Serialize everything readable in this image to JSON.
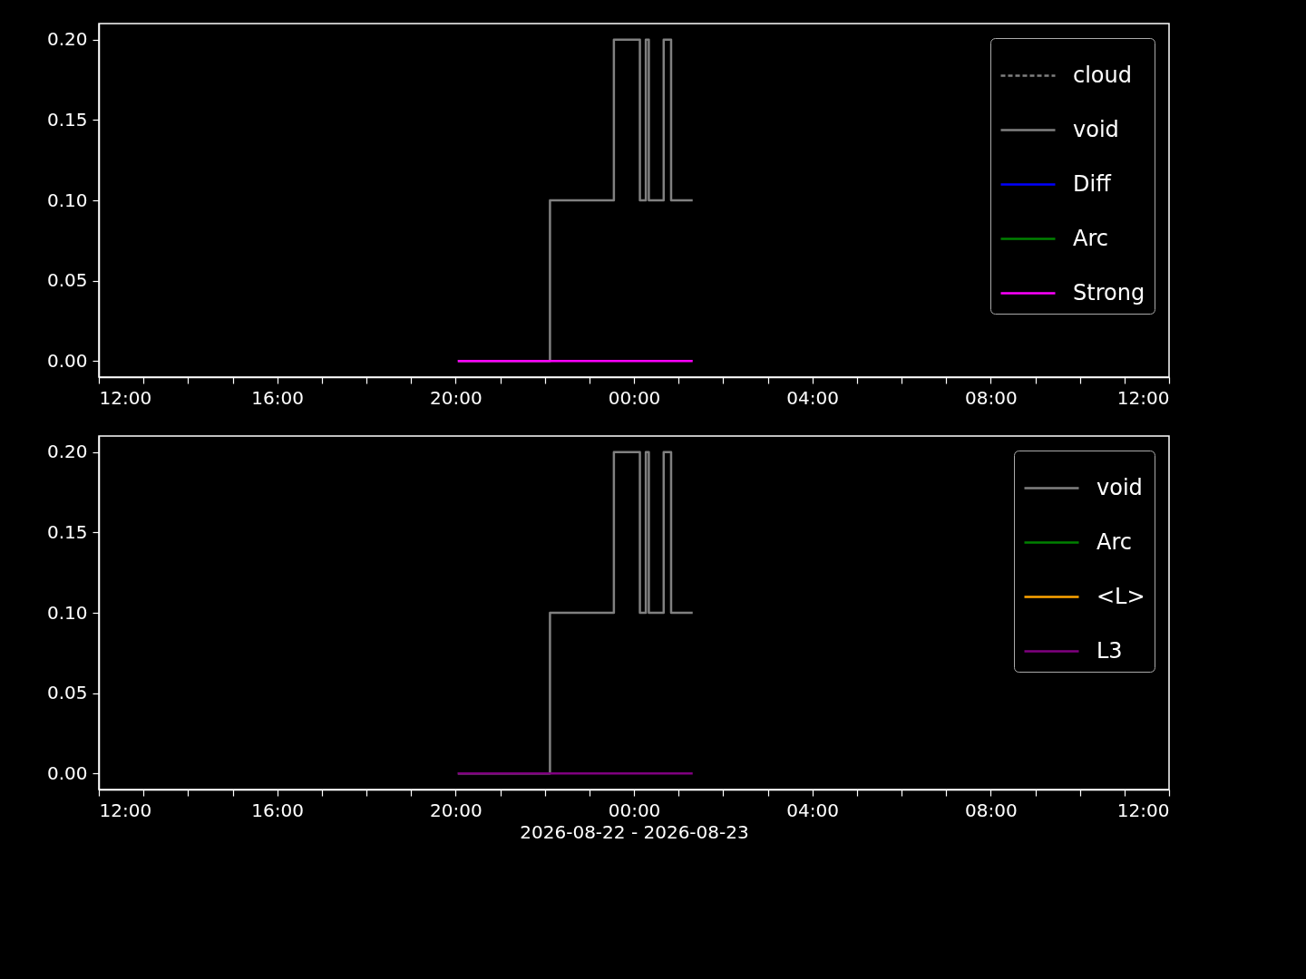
{
  "chart_data": [
    {
      "type": "line",
      "xlim": [
        "2026-08-22T12:00",
        "2026-08-23T12:00"
      ],
      "xticks": [
        {
          "value": "2026-08-22T12:00",
          "label": "12:00"
        },
        {
          "value": "2026-08-22T13:00",
          "label": null
        },
        {
          "value": "2026-08-22T14:00",
          "label": null
        },
        {
          "value": "2026-08-22T15:00",
          "label": null
        },
        {
          "value": "2026-08-22T16:00",
          "label": "16:00"
        },
        {
          "value": "2026-08-22T17:00",
          "label": null
        },
        {
          "value": "2026-08-22T18:00",
          "label": null
        },
        {
          "value": "2026-08-22T19:00",
          "label": null
        },
        {
          "value": "2026-08-22T20:00",
          "label": "20:00"
        },
        {
          "value": "2026-08-22T21:00",
          "label": null
        },
        {
          "value": "2026-08-22T22:00",
          "label": null
        },
        {
          "value": "2026-08-22T23:00",
          "label": null
        },
        {
          "value": "2026-08-23T00:00",
          "label": "00:00"
        },
        {
          "value": "2026-08-23T01:00",
          "label": null
        },
        {
          "value": "2026-08-23T02:00",
          "label": null
        },
        {
          "value": "2026-08-23T03:00",
          "label": null
        },
        {
          "value": "2026-08-23T04:00",
          "label": "04:00"
        },
        {
          "value": "2026-08-23T05:00",
          "label": null
        },
        {
          "value": "2026-08-23T06:00",
          "label": null
        },
        {
          "value": "2026-08-23T07:00",
          "label": null
        },
        {
          "value": "2026-08-23T08:00",
          "label": "08:00"
        },
        {
          "value": "2026-08-23T09:00",
          "label": null
        },
        {
          "value": "2026-08-23T10:00",
          "label": null
        },
        {
          "value": "2026-08-23T11:00",
          "label": null
        },
        {
          "value": "2026-08-23T12:00",
          "label": "12:00"
        }
      ],
      "ylim": [
        -0.01,
        0.21
      ],
      "yticks": [
        {
          "value": 0,
          "label": "0.00"
        },
        {
          "value": 0.05,
          "label": "0.05"
        },
        {
          "value": 0.1,
          "label": "0.10"
        },
        {
          "value": 0.15,
          "label": "0.15"
        },
        {
          "value": 0.2,
          "label": "0.20"
        }
      ],
      "legend": "top right",
      "grid": false,
      "series": [
        {
          "name": "cloud",
          "color": "#808080",
          "line_style": "dashed"
        },
        {
          "name": "void",
          "color": "#808080",
          "type": "step",
          "x": [
            "2026-08-22T20:03",
            "2026-08-22T22:07",
            "2026-08-22T23:33",
            "2026-08-23T00:08",
            "2026-08-23T00:16",
            "2026-08-23T00:20",
            "2026-08-23T00:40",
            "2026-08-23T00:50",
            "2026-08-23T01:19"
          ],
          "values": [
            0,
            0.1,
            0.2,
            0.1,
            0.2,
            0.1,
            0.2,
            0.1,
            0.1
          ]
        },
        {
          "name": "Diff",
          "color": "#0000ff"
        },
        {
          "name": "Arc",
          "color": "#008000"
        },
        {
          "name": "Strong",
          "color": "#ff00ff",
          "x": [
            "2026-08-22T20:03",
            "2026-08-23T01:19"
          ],
          "values": [
            0,
            0
          ]
        }
      ]
    },
    {
      "type": "line",
      "xlabel": "2026-08-22 - 2026-08-23",
      "xlim": [
        "2026-08-22T12:00",
        "2026-08-23T12:00"
      ],
      "xticks": [
        {
          "value": "2026-08-22T12:00",
          "label": "12:00"
        },
        {
          "value": "2026-08-22T13:00",
          "label": null
        },
        {
          "value": "2026-08-22T14:00",
          "label": null
        },
        {
          "value": "2026-08-22T15:00",
          "label": null
        },
        {
          "value": "2026-08-22T16:00",
          "label": "16:00"
        },
        {
          "value": "2026-08-22T17:00",
          "label": null
        },
        {
          "value": "2026-08-22T18:00",
          "label": null
        },
        {
          "value": "2026-08-22T19:00",
          "label": null
        },
        {
          "value": "2026-08-22T20:00",
          "label": "20:00"
        },
        {
          "value": "2026-08-22T21:00",
          "label": null
        },
        {
          "value": "2026-08-22T22:00",
          "label": null
        },
        {
          "value": "2026-08-22T23:00",
          "label": null
        },
        {
          "value": "2026-08-23T00:00",
          "label": "00:00"
        },
        {
          "value": "2026-08-23T01:00",
          "label": null
        },
        {
          "value": "2026-08-23T02:00",
          "label": null
        },
        {
          "value": "2026-08-23T03:00",
          "label": null
        },
        {
          "value": "2026-08-23T04:00",
          "label": "04:00"
        },
        {
          "value": "2026-08-23T05:00",
          "label": null
        },
        {
          "value": "2026-08-23T06:00",
          "label": null
        },
        {
          "value": "2026-08-23T07:00",
          "label": null
        },
        {
          "value": "2026-08-23T08:00",
          "label": "08:00"
        },
        {
          "value": "2026-08-23T09:00",
          "label": null
        },
        {
          "value": "2026-08-23T10:00",
          "label": null
        },
        {
          "value": "2026-08-23T11:00",
          "label": null
        },
        {
          "value": "2026-08-23T12:00",
          "label": "12:00"
        }
      ],
      "ylim": [
        -0.01,
        0.21
      ],
      "yticks": [
        {
          "value": 0,
          "label": "0.00"
        },
        {
          "value": 0.05,
          "label": "0.05"
        },
        {
          "value": 0.1,
          "label": "0.10"
        },
        {
          "value": 0.15,
          "label": "0.15"
        },
        {
          "value": 0.2,
          "label": "0.20"
        }
      ],
      "legend": "top right",
      "grid": false,
      "series": [
        {
          "name": "void",
          "color": "#808080",
          "type": "step",
          "x": [
            "2026-08-22T20:03",
            "2026-08-22T22:07",
            "2026-08-22T23:33",
            "2026-08-23T00:08",
            "2026-08-23T00:16",
            "2026-08-23T00:20",
            "2026-08-23T00:40",
            "2026-08-23T00:50",
            "2026-08-23T01:19"
          ],
          "values": [
            0,
            0.1,
            0.2,
            0.1,
            0.2,
            0.1,
            0.2,
            0.1,
            0.1
          ]
        },
        {
          "name": "Arc",
          "color": "#008000"
        },
        {
          "name": "<L>",
          "color": "#ffa500"
        },
        {
          "name": "L3",
          "color": "#800080",
          "x": [
            "2026-08-22T20:03",
            "2026-08-23T01:19"
          ],
          "values": [
            0,
            0
          ]
        }
      ]
    }
  ]
}
